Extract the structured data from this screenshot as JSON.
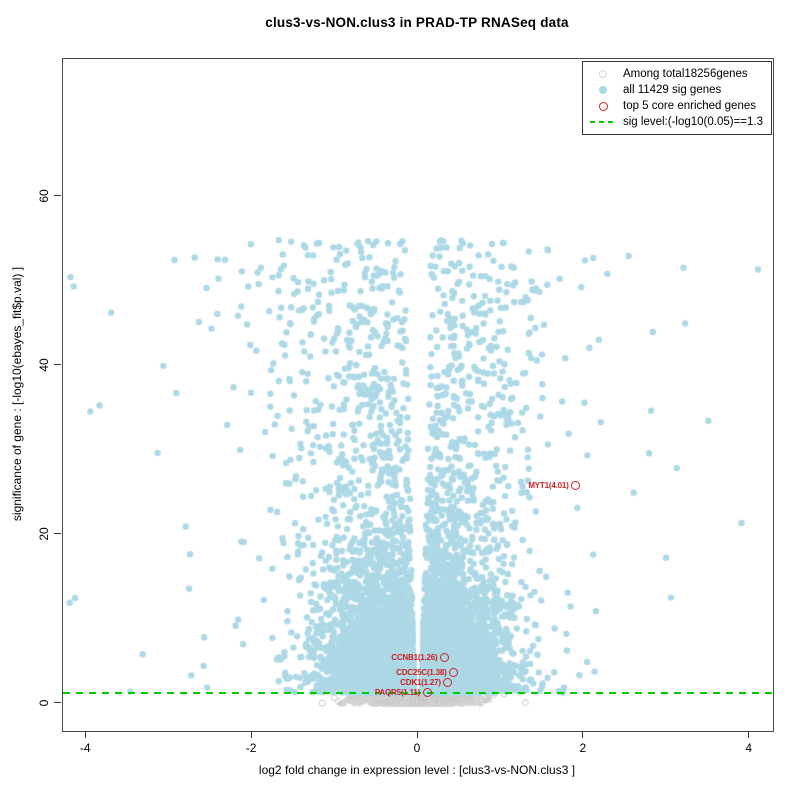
{
  "title": "clus3-vs-NON.clus3 in PRAD-TP RNASeq data",
  "axes": {
    "x": {
      "label": "log2 fold change in expression level : [clus3-vs-NON.clus3 ]",
      "ticks": [
        "-4",
        "-2",
        "0",
        "2",
        "4"
      ],
      "tick_values": [
        -4,
        -2,
        0,
        2,
        4
      ]
    },
    "y": {
      "label": "significance of gene : [-log10(ebayes_fit$p.val) ]",
      "ticks": [
        "0",
        "20",
        "40",
        "60"
      ],
      "tick_values": [
        0,
        20,
        40,
        60
      ]
    }
  },
  "legend": {
    "items": [
      {
        "marker": "open-circle",
        "color": "#D3D3D3",
        "label": "Among total18256genes"
      },
      {
        "marker": "filled-circle",
        "color": "#ADD8E6",
        "label": "all 11429 sig genes"
      },
      {
        "marker": "open-circle-red",
        "color": "#CC2222",
        "label": "top 5 core enriched genes"
      },
      {
        "marker": "dashed-line",
        "color": "#00CC00",
        "label": "sig level:(-log10(0.05)==1.3"
      }
    ]
  },
  "chart_data": {
    "type": "scatter",
    "title": "clus3-vs-NON.clus3 in PRAD-TP RNASeq data",
    "xlabel": "log2 fold change in expression level : [clus3-vs-NON.clus3 ]",
    "ylabel": "significance of gene : [-log10(ebayes_fit$p.val) ]",
    "xlim": [
      -4.28,
      4.28
    ],
    "ylim": [
      -3.2,
      76.3
    ],
    "grid": false,
    "legend_position": "top-right",
    "sig_level": 1.3,
    "sig_line_color": "#00CC00",
    "total_genes": 18256,
    "sig_genes": 11429,
    "colors": {
      "nonsig": "#D3D3D3",
      "sig": "#ADD8E6",
      "core": "#CC2222"
    },
    "core_enriched_genes": [
      {
        "gene": "MYT1",
        "score": 4.01,
        "x": 1.9,
        "y": 25.9,
        "label": "MYT1(4.01)"
      },
      {
        "gene": "CCNB1",
        "score": 1.26,
        "x": 0.32,
        "y": 5.5,
        "label": "CCNB1(1.26)"
      },
      {
        "gene": "CDC25C",
        "score": 1.38,
        "x": 0.43,
        "y": 3.7,
        "label": "CDC25C(1.38)"
      },
      {
        "gene": "CDK1",
        "score": 1.27,
        "x": 0.36,
        "y": 2.5,
        "label": "CDK1(1.27)"
      },
      {
        "gene": "PAQR5",
        "score": 1.11,
        "x": 0.11,
        "y": 1.4,
        "label": "PAQR5(1.11)"
      }
    ],
    "sig_outlier_points": [
      [
        -4.19,
        50.5
      ],
      [
        -4.15,
        49.4
      ],
      [
        -3.95,
        34.6
      ],
      [
        -3.84,
        35.3
      ],
      [
        -3.7,
        46.3
      ],
      [
        -3.14,
        29.7
      ],
      [
        -3.07,
        40.0
      ],
      [
        -2.8,
        21.0
      ],
      [
        -2.55,
        49.2
      ],
      [
        -2.49,
        44.4
      ],
      [
        -2.3,
        33.0
      ],
      [
        -2.06,
        44.9
      ],
      [
        -1.53,
        54.7
      ],
      [
        -1.33,
        53.1
      ],
      [
        -0.3,
        51.0
      ],
      [
        0.31,
        51.2
      ],
      [
        2.18,
        43.1
      ],
      [
        2.54,
        53.0
      ],
      [
        2.6,
        25.0
      ],
      [
        2.81,
        34.7
      ],
      [
        2.83,
        44.0
      ],
      [
        2.99,
        17.3
      ],
      [
        3.12,
        27.9
      ],
      [
        3.2,
        51.6
      ],
      [
        3.22,
        45.0
      ],
      [
        3.5,
        33.5
      ],
      [
        3.9,
        21.4
      ],
      [
        4.1,
        51.4
      ]
    ],
    "generation": {
      "seed": 1234,
      "sig": {
        "render_count": 11429,
        "y_exp_mean": 3.6,
        "y_exp_share": 0.8,
        "y_quad_max": 53,
        "y_cap": 55.5,
        "gap_base": 0.045,
        "gap_slope": 0.002,
        "sigma_base": 0.34,
        "sigma_slope": 0.01,
        "tail_prob": 0.04,
        "tail_mean": 0.6,
        "left_prob": 0.53,
        "left_widen": 1.1,
        "x_clip": 4.22,
        "point_radius": 3.2
      },
      "nonsig": {
        "render_count": 1800,
        "x_sigma": 0.26,
        "y_mean": 0.55,
        "y_sigma": 0.33,
        "y_min": 0.02,
        "y_max": 1.27,
        "point_radius": 3,
        "fringe_count": 50,
        "fringe_x_sigma": 0.5
      }
    }
  }
}
